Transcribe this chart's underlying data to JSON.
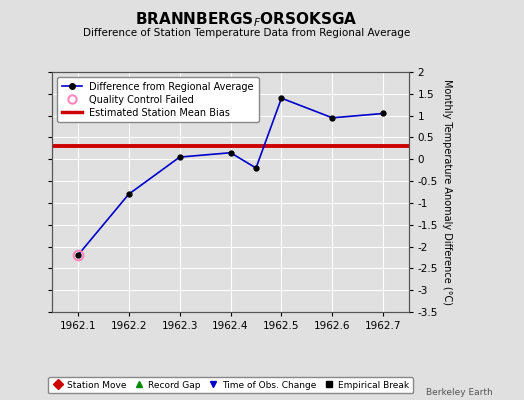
{
  "title_main": "BRANNBERGS",
  "title_sub_letter": "F",
  "title_rest": "ORSOKSGA",
  "subtitle": "Difference of Station Temperature Data from Regional Average",
  "x_line": [
    1962.1,
    1962.2,
    1962.3,
    1962.4,
    1962.45,
    1962.5,
    1962.6,
    1962.7
  ],
  "y_line": [
    -2.2,
    -0.8,
    0.05,
    0.15,
    -0.2,
    1.4,
    0.95,
    1.05
  ],
  "qc_failed_x": [
    1962.1
  ],
  "qc_failed_y": [
    -2.2
  ],
  "bias_y": 0.3,
  "ylim": [
    -3.5,
    2.0
  ],
  "xlim": [
    1962.05,
    1962.75
  ],
  "yticks": [
    -3.5,
    -3.0,
    -2.5,
    -2.0,
    -1.5,
    -1.0,
    -0.5,
    0.0,
    0.5,
    1.0,
    1.5,
    2.0
  ],
  "ytick_labels": [
    "-3.5",
    "-3",
    "-2.5",
    "-2",
    "-1.5",
    "-1",
    "-0.5",
    "0",
    "0.5",
    "1",
    "1.5",
    "2"
  ],
  "xticks": [
    1962.1,
    1962.2,
    1962.3,
    1962.4,
    1962.5,
    1962.6,
    1962.7
  ],
  "xtick_labels": [
    "1962.1",
    "1962.2",
    "1962.3",
    "1962.4",
    "1962.5",
    "1962.6",
    "1962.7"
  ],
  "line_color": "#0000cc",
  "marker_color": "#000000",
  "bias_color": "#cc0000",
  "qc_color": "#ff88bb",
  "background_color": "#e0e0e0",
  "grid_color": "#ffffff",
  "ylabel_right": "Monthly Temperature Anomaly Difference (°C)",
  "watermark": "Berkeley Earth",
  "bottom_legend": [
    {
      "label": "Station Move",
      "color": "#cc0000",
      "marker": "D"
    },
    {
      "label": "Record Gap",
      "color": "#008800",
      "marker": "^"
    },
    {
      "label": "Time of Obs. Change",
      "color": "#0000cc",
      "marker": "v"
    },
    {
      "label": "Empirical Break",
      "color": "#000000",
      "marker": "s"
    }
  ]
}
